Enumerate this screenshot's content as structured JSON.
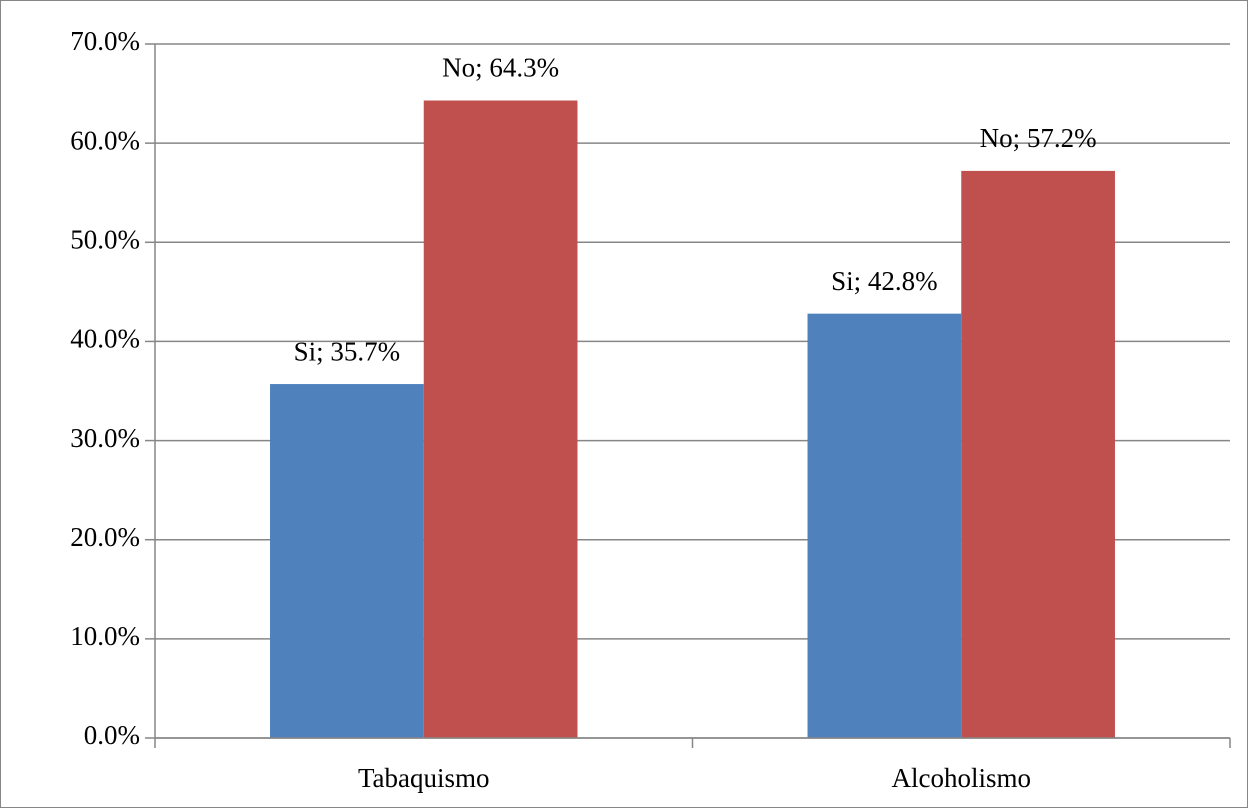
{
  "chart_data": {
    "type": "bar",
    "categories": [
      "Tabaquismo",
      "Alcoholismo"
    ],
    "series": [
      {
        "color": "#4f81bd",
        "values": [
          35.7,
          42.8
        ],
        "value_labels": [
          "Si; 35.7%",
          "Si; 42.8%"
        ]
      },
      {
        "color": "#c0504d",
        "values": [
          64.3,
          57.2
        ],
        "value_labels": [
          "No; 64.3%",
          "No; 57.2%"
        ]
      }
    ],
    "ylim": [
      0,
      70
    ],
    "yticks": [
      {
        "value": 0,
        "label": "0.0%"
      },
      {
        "value": 10,
        "label": "10.0%"
      },
      {
        "value": 20,
        "label": "20.0%"
      },
      {
        "value": 30,
        "label": "30.0%"
      },
      {
        "value": 40,
        "label": "40.0%"
      },
      {
        "value": 50,
        "label": "50.0%"
      },
      {
        "value": 60,
        "label": "60.0%"
      },
      {
        "value": 70,
        "label": "70.0%"
      }
    ],
    "grid": true
  }
}
